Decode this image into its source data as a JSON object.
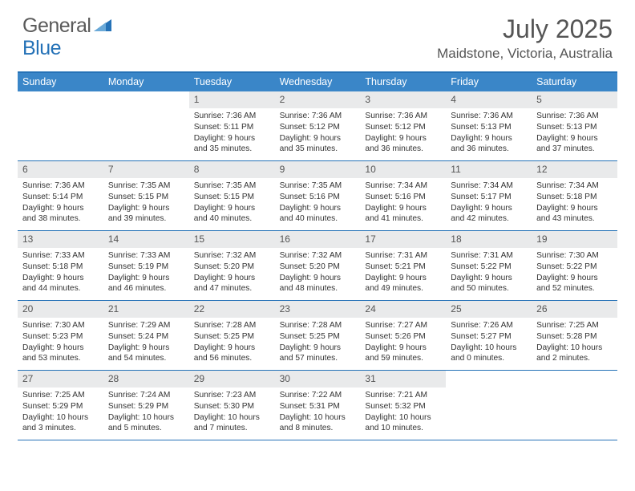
{
  "brand": {
    "part1": "General",
    "part2": "Blue"
  },
  "title": "July 2025",
  "location": "Maidstone, Victoria, Australia",
  "header_color": "#3a86c8",
  "rule_color": "#2572b7",
  "dayhead_bg": "#e9eaeb",
  "dayNames": [
    "Sunday",
    "Monday",
    "Tuesday",
    "Wednesday",
    "Thursday",
    "Friday",
    "Saturday"
  ],
  "weeks": [
    [
      {
        "blank": true
      },
      {
        "blank": true
      },
      {
        "d": "1",
        "sr": "7:36 AM",
        "ss": "5:11 PM",
        "dl": "9 hours and 35 minutes."
      },
      {
        "d": "2",
        "sr": "7:36 AM",
        "ss": "5:12 PM",
        "dl": "9 hours and 35 minutes."
      },
      {
        "d": "3",
        "sr": "7:36 AM",
        "ss": "5:12 PM",
        "dl": "9 hours and 36 minutes."
      },
      {
        "d": "4",
        "sr": "7:36 AM",
        "ss": "5:13 PM",
        "dl": "9 hours and 36 minutes."
      },
      {
        "d": "5",
        "sr": "7:36 AM",
        "ss": "5:13 PM",
        "dl": "9 hours and 37 minutes."
      }
    ],
    [
      {
        "d": "6",
        "sr": "7:36 AM",
        "ss": "5:14 PM",
        "dl": "9 hours and 38 minutes."
      },
      {
        "d": "7",
        "sr": "7:35 AM",
        "ss": "5:15 PM",
        "dl": "9 hours and 39 minutes."
      },
      {
        "d": "8",
        "sr": "7:35 AM",
        "ss": "5:15 PM",
        "dl": "9 hours and 40 minutes."
      },
      {
        "d": "9",
        "sr": "7:35 AM",
        "ss": "5:16 PM",
        "dl": "9 hours and 40 minutes."
      },
      {
        "d": "10",
        "sr": "7:34 AM",
        "ss": "5:16 PM",
        "dl": "9 hours and 41 minutes."
      },
      {
        "d": "11",
        "sr": "7:34 AM",
        "ss": "5:17 PM",
        "dl": "9 hours and 42 minutes."
      },
      {
        "d": "12",
        "sr": "7:34 AM",
        "ss": "5:18 PM",
        "dl": "9 hours and 43 minutes."
      }
    ],
    [
      {
        "d": "13",
        "sr": "7:33 AM",
        "ss": "5:18 PM",
        "dl": "9 hours and 44 minutes."
      },
      {
        "d": "14",
        "sr": "7:33 AM",
        "ss": "5:19 PM",
        "dl": "9 hours and 46 minutes."
      },
      {
        "d": "15",
        "sr": "7:32 AM",
        "ss": "5:20 PM",
        "dl": "9 hours and 47 minutes."
      },
      {
        "d": "16",
        "sr": "7:32 AM",
        "ss": "5:20 PM",
        "dl": "9 hours and 48 minutes."
      },
      {
        "d": "17",
        "sr": "7:31 AM",
        "ss": "5:21 PM",
        "dl": "9 hours and 49 minutes."
      },
      {
        "d": "18",
        "sr": "7:31 AM",
        "ss": "5:22 PM",
        "dl": "9 hours and 50 minutes."
      },
      {
        "d": "19",
        "sr": "7:30 AM",
        "ss": "5:22 PM",
        "dl": "9 hours and 52 minutes."
      }
    ],
    [
      {
        "d": "20",
        "sr": "7:30 AM",
        "ss": "5:23 PM",
        "dl": "9 hours and 53 minutes."
      },
      {
        "d": "21",
        "sr": "7:29 AM",
        "ss": "5:24 PM",
        "dl": "9 hours and 54 minutes."
      },
      {
        "d": "22",
        "sr": "7:28 AM",
        "ss": "5:25 PM",
        "dl": "9 hours and 56 minutes."
      },
      {
        "d": "23",
        "sr": "7:28 AM",
        "ss": "5:25 PM",
        "dl": "9 hours and 57 minutes."
      },
      {
        "d": "24",
        "sr": "7:27 AM",
        "ss": "5:26 PM",
        "dl": "9 hours and 59 minutes."
      },
      {
        "d": "25",
        "sr": "7:26 AM",
        "ss": "5:27 PM",
        "dl": "10 hours and 0 minutes."
      },
      {
        "d": "26",
        "sr": "7:25 AM",
        "ss": "5:28 PM",
        "dl": "10 hours and 2 minutes."
      }
    ],
    [
      {
        "d": "27",
        "sr": "7:25 AM",
        "ss": "5:29 PM",
        "dl": "10 hours and 3 minutes."
      },
      {
        "d": "28",
        "sr": "7:24 AM",
        "ss": "5:29 PM",
        "dl": "10 hours and 5 minutes."
      },
      {
        "d": "29",
        "sr": "7:23 AM",
        "ss": "5:30 PM",
        "dl": "10 hours and 7 minutes."
      },
      {
        "d": "30",
        "sr": "7:22 AM",
        "ss": "5:31 PM",
        "dl": "10 hours and 8 minutes."
      },
      {
        "d": "31",
        "sr": "7:21 AM",
        "ss": "5:32 PM",
        "dl": "10 hours and 10 minutes."
      },
      {
        "blank": true
      },
      {
        "blank": true
      }
    ]
  ],
  "labels": {
    "sunrise": "Sunrise:",
    "sunset": "Sunset:",
    "daylight": "Daylight:"
  }
}
